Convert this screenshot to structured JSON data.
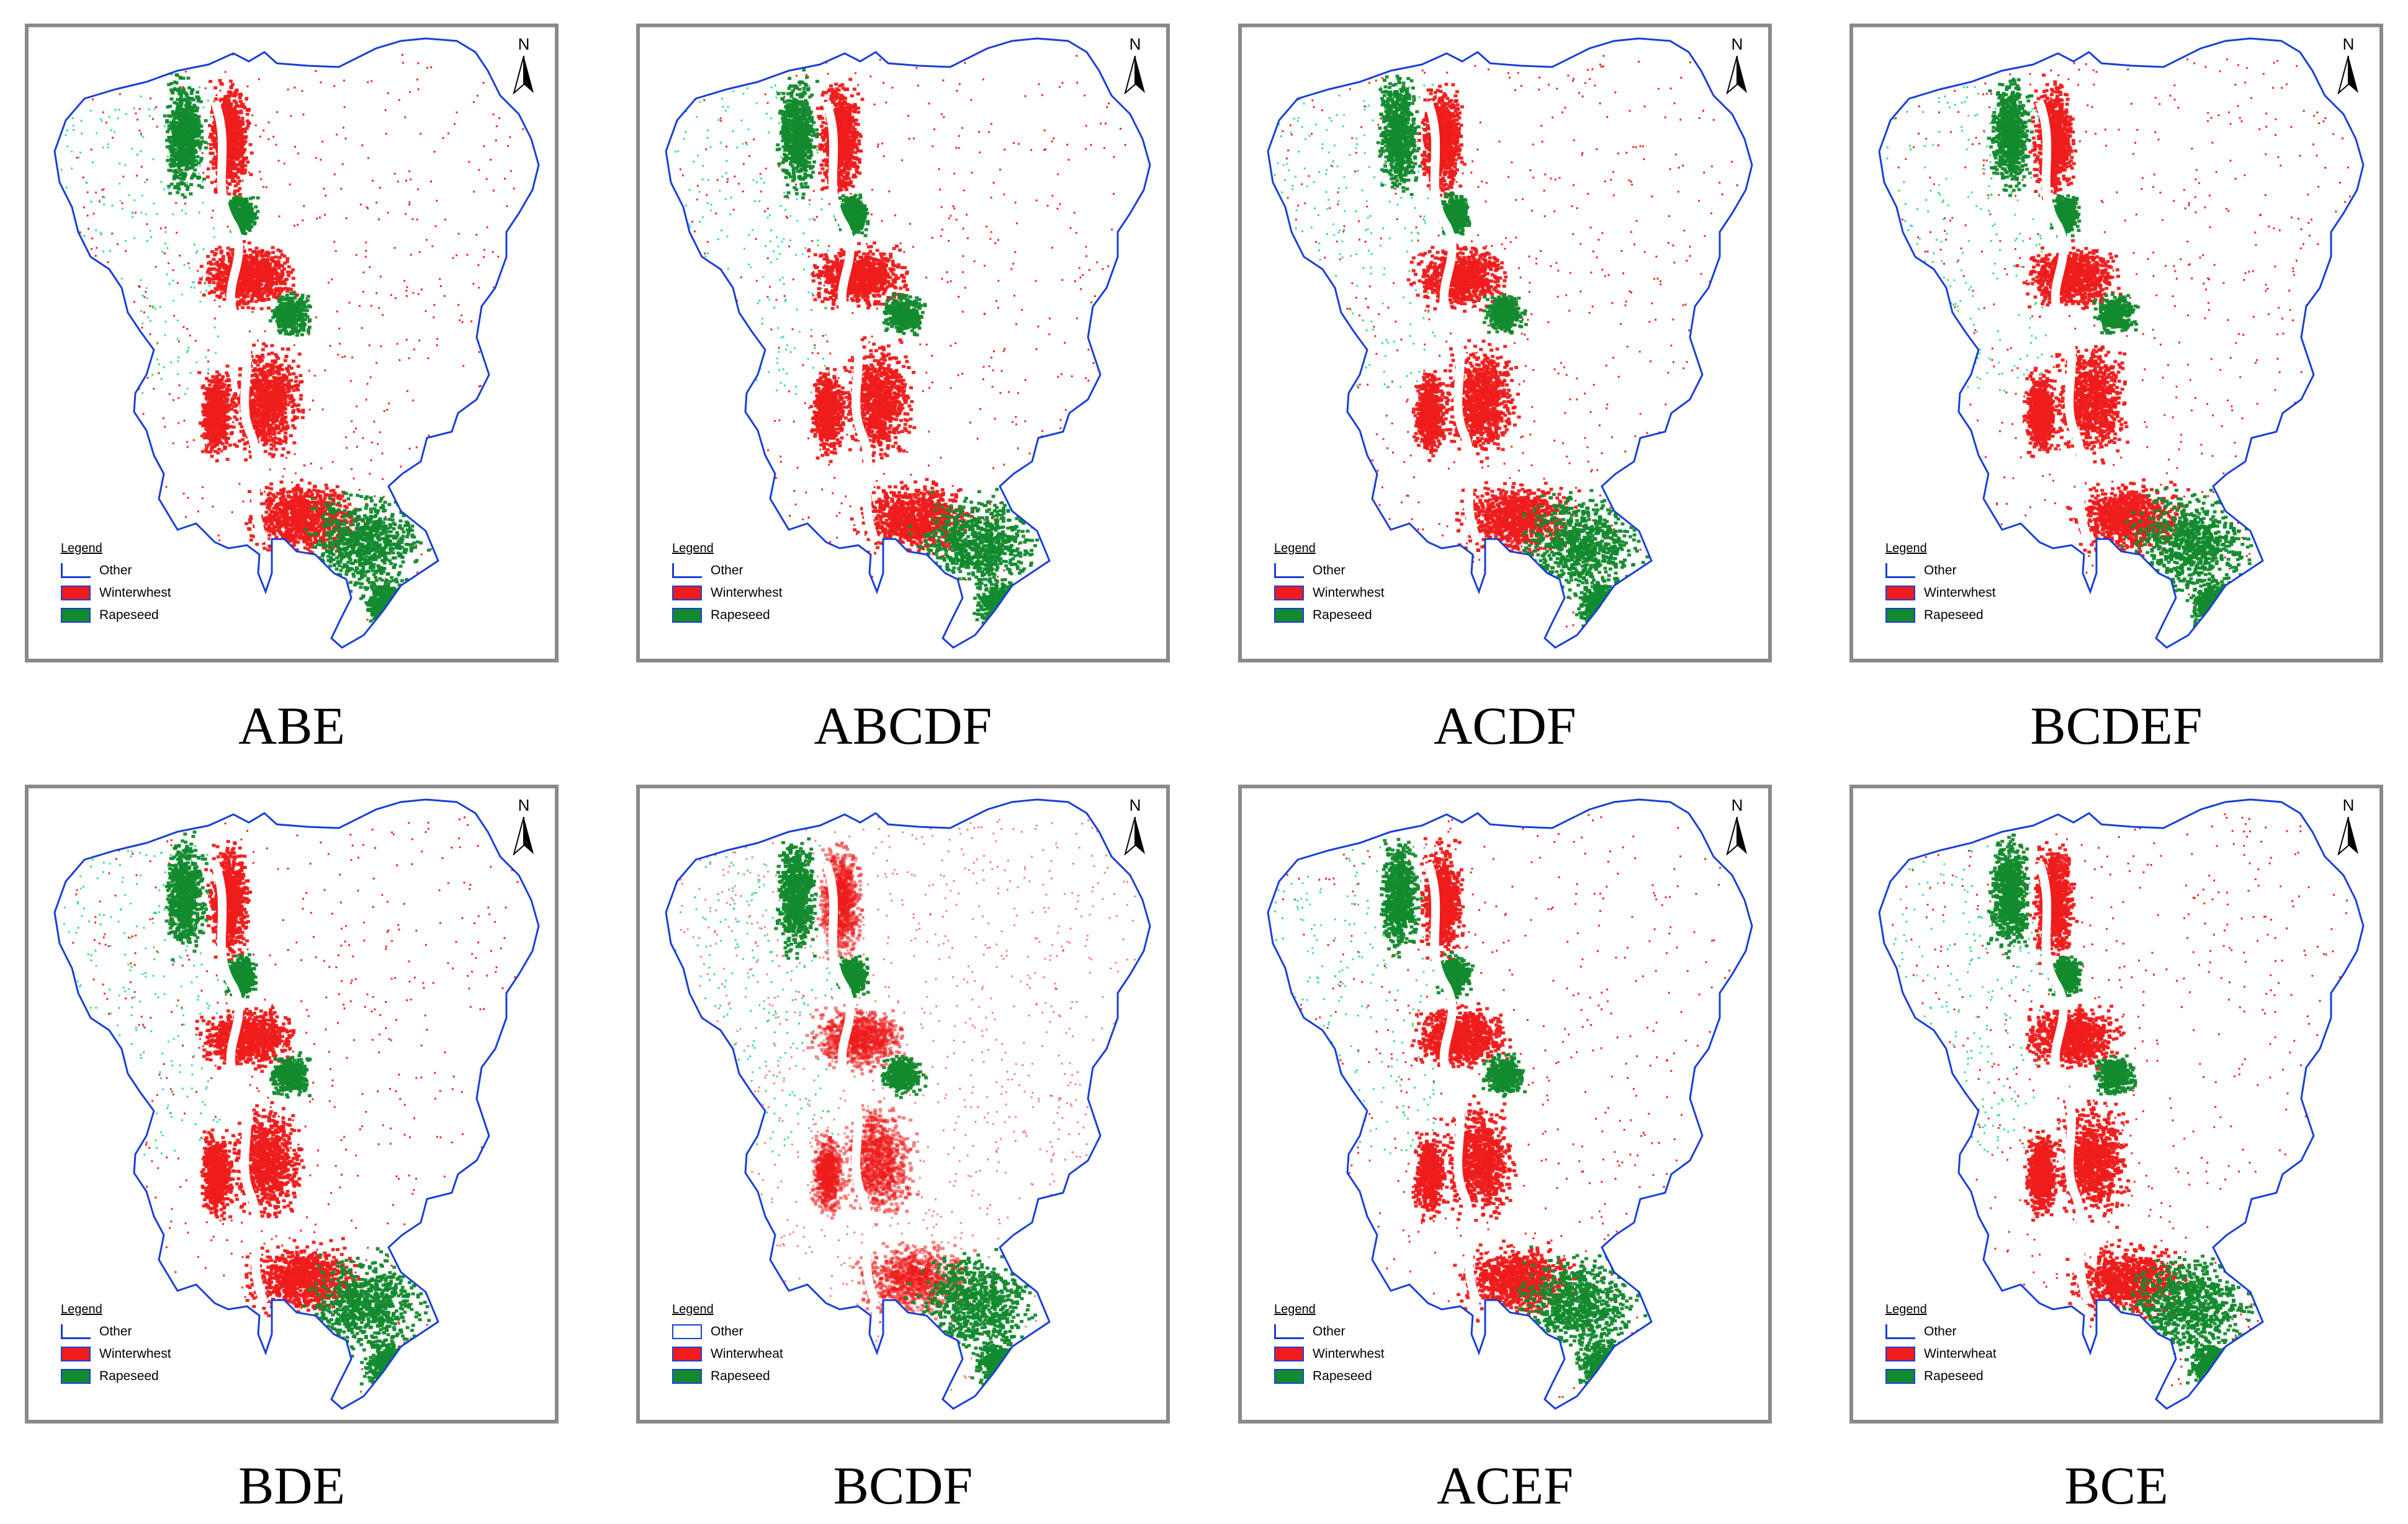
{
  "north_label": "N",
  "colors": {
    "boundary": "#1a3fd6",
    "winterwheat": "#ee1c1c",
    "rapeseed": "#138a2e",
    "other_dots": "#22dd66",
    "frame": "#8a8a8a"
  },
  "panels": [
    {
      "caption": "ABE",
      "legend": {
        "title": "Legend",
        "items": [
          {
            "label": "Other",
            "swatch": "line",
            "icon": "boundary-line-icon"
          },
          {
            "label": "Winterwhest",
            "swatch": "red",
            "icon": "winterwheat-swatch-icon"
          },
          {
            "label": "Rapeseed",
            "swatch": "green",
            "icon": "rapeseed-swatch-icon"
          }
        ]
      }
    },
    {
      "caption": "ABCDF",
      "legend": {
        "title": "Legend",
        "items": [
          {
            "label": "Other",
            "swatch": "line",
            "icon": "boundary-line-icon"
          },
          {
            "label": "Winterwhest",
            "swatch": "red",
            "icon": "winterwheat-swatch-icon"
          },
          {
            "label": "Rapeseed",
            "swatch": "green",
            "icon": "rapeseed-swatch-icon"
          }
        ]
      }
    },
    {
      "caption": "ACDF",
      "legend": {
        "title": "Legend",
        "items": [
          {
            "label": "Other",
            "swatch": "line",
            "icon": "boundary-line-icon"
          },
          {
            "label": "Winterwhest",
            "swatch": "red",
            "icon": "winterwheat-swatch-icon"
          },
          {
            "label": "Rapeseed",
            "swatch": "green",
            "icon": "rapeseed-swatch-icon"
          }
        ]
      }
    },
    {
      "caption": "BCDEF",
      "legend": {
        "title": "Legend",
        "items": [
          {
            "label": "Other",
            "swatch": "line",
            "icon": "boundary-line-icon"
          },
          {
            "label": "Winterwhest",
            "swatch": "red",
            "icon": "winterwheat-swatch-icon"
          },
          {
            "label": "Rapeseed",
            "swatch": "green",
            "icon": "rapeseed-swatch-icon"
          }
        ]
      }
    },
    {
      "caption": "BDE",
      "legend": {
        "title": "Legend",
        "items": [
          {
            "label": "Other",
            "swatch": "line",
            "icon": "boundary-line-icon"
          },
          {
            "label": "Winterwhest",
            "swatch": "red",
            "icon": "winterwheat-swatch-icon"
          },
          {
            "label": "Rapeseed",
            "swatch": "green",
            "icon": "rapeseed-swatch-icon"
          }
        ]
      }
    },
    {
      "caption": "BCDF",
      "legend": {
        "title": "Legend",
        "items": [
          {
            "label": "Other",
            "swatch": "box",
            "icon": "boundary-box-icon"
          },
          {
            "label": "Winterwheat",
            "swatch": "red",
            "icon": "winterwheat-swatch-icon"
          },
          {
            "label": "Rapeseed",
            "swatch": "green",
            "icon": "rapeseed-swatch-icon"
          }
        ]
      }
    },
    {
      "caption": "ACEF",
      "legend": {
        "title": "Legend",
        "items": [
          {
            "label": "Other",
            "swatch": "line",
            "icon": "boundary-line-icon"
          },
          {
            "label": "Winterwhest",
            "swatch": "red",
            "icon": "winterwheat-swatch-icon"
          },
          {
            "label": "Rapeseed",
            "swatch": "green",
            "icon": "rapeseed-swatch-icon"
          }
        ]
      }
    },
    {
      "caption": "BCE",
      "legend": {
        "title": "Legend",
        "items": [
          {
            "label": "Other",
            "swatch": "line",
            "icon": "boundary-line-icon"
          },
          {
            "label": "Winterwheat",
            "swatch": "red",
            "icon": "winterwheat-swatch-icon"
          },
          {
            "label": "Rapeseed",
            "swatch": "green",
            "icon": "rapeseed-swatch-icon"
          }
        ]
      }
    }
  ]
}
